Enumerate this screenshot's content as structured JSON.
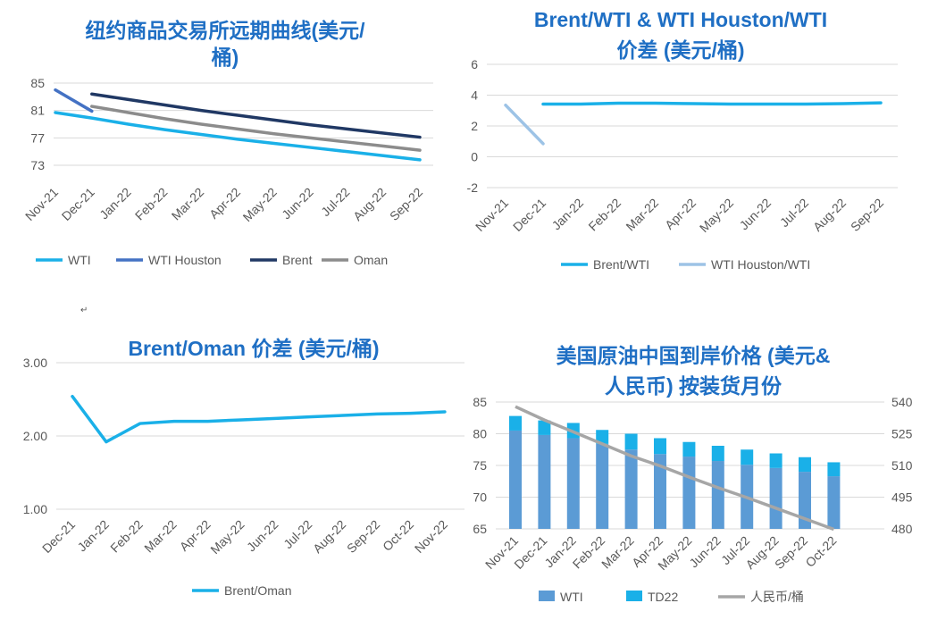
{
  "charts": [
    {
      "title_lines": [
        "纽约商品交易所远期曲线(美元/",
        "桶)"
      ],
      "ylim": [
        70,
        88
      ],
      "yticks": [
        "73",
        "77",
        "81",
        "85"
      ],
      "categories": [
        "Nov-21",
        "Dec-21",
        "Jan-22",
        "Feb-22",
        "Mar-22",
        "Apr-22",
        "May-22",
        "Jun-22",
        "Jul-22",
        "Aug-22",
        "Sep-22"
      ],
      "legend": [
        "WTI",
        "WTI Houston",
        "Brent",
        "Oman"
      ]
    },
    {
      "title_lines": [
        "Brent/WTI & WTI Houston/WTI",
        "价差 (美元/桶)"
      ],
      "ylim": [
        -2,
        6
      ],
      "yticks": [
        "-2",
        "0",
        "2",
        "4",
        "6"
      ],
      "categories": [
        "Nov-21",
        "Dec-21",
        "Jan-22",
        "Feb-22",
        "Mar-22",
        "Apr-22",
        "May-22",
        "Jun-22",
        "Jul-22",
        "Aug-22",
        "Sep-22"
      ],
      "legend": [
        "Brent/WTI",
        "WTI Houston/WTI"
      ]
    },
    {
      "title_lines": [
        "Brent/Oman 价差 (美元/桶)"
      ],
      "ylim": [
        1.0,
        3.0
      ],
      "yticks": [
        "1.00",
        "2.00",
        "3.00"
      ],
      "categories": [
        "Dec-21",
        "Jan-22",
        "Feb-22",
        "Mar-22",
        "Apr-22",
        "May-22",
        "Jun-22",
        "Jul-22",
        "Aug-22",
        "Sep-22",
        "Oct-22",
        "Nov-22"
      ],
      "legend": [
        "Brent/Oman"
      ]
    },
    {
      "title_lines": [
        "美国原油中国到岸价格 (美元&",
        "人民币) 按装货月份"
      ],
      "ylim": [
        65,
        85
      ],
      "yticks": [
        "65",
        "70",
        "75",
        "80",
        "85"
      ],
      "y2lim": [
        480,
        540
      ],
      "y2ticks": [
        "480",
        "495",
        "510",
        "525",
        "540"
      ],
      "categories": [
        "Nov-21",
        "Dec-21",
        "Jan-22",
        "Feb-22",
        "Mar-22",
        "Apr-22",
        "May-22",
        "Jun-22",
        "Jul-22",
        "Aug-22",
        "Sep-22",
        "Oct-22"
      ],
      "legend": [
        "WTI",
        "TD22",
        "人民币/桶"
      ]
    }
  ],
  "chart_data": [
    {
      "type": "line",
      "title": "纽约商品交易所远期曲线(美元/桶)",
      "categories": [
        "Nov-21",
        "Dec-21",
        "Jan-22",
        "Feb-22",
        "Mar-22",
        "Apr-22",
        "May-22",
        "Jun-22",
        "Jul-22",
        "Aug-22",
        "Sep-22"
      ],
      "ylim": [
        70,
        88
      ],
      "series": [
        {
          "name": "WTI",
          "color": "#1ab0e8",
          "values": [
            80.7,
            79.9,
            79.0,
            78.2,
            77.5,
            76.8,
            76.2,
            75.6,
            75.0,
            74.4,
            73.8
          ]
        },
        {
          "name": "WTI Houston",
          "color": "#4472c4",
          "values": [
            84.0,
            80.9,
            null,
            null,
            null,
            null,
            null,
            null,
            null,
            null,
            null
          ]
        },
        {
          "name": "Brent",
          "color": "#203864",
          "values": [
            null,
            83.4,
            82.6,
            81.8,
            81.0,
            80.3,
            79.6,
            78.9,
            78.3,
            77.7,
            77.1
          ]
        },
        {
          "name": "Oman",
          "color": "#8c8c8c",
          "values": [
            null,
            81.6,
            80.7,
            79.8,
            79.0,
            78.3,
            77.6,
            77.0,
            76.4,
            75.8,
            75.2
          ]
        }
      ]
    },
    {
      "type": "line",
      "title": "Brent/WTI & WTI Houston/WTI 价差 (美元/桶)",
      "categories": [
        "Nov-21",
        "Dec-21",
        "Jan-22",
        "Feb-22",
        "Mar-22",
        "Apr-22",
        "May-22",
        "Jun-22",
        "Jul-22",
        "Aug-22",
        "Sep-22"
      ],
      "ylim": [
        -2,
        6
      ],
      "series": [
        {
          "name": "Brent/WTI",
          "color": "#1ab0e8",
          "values": [
            null,
            3.42,
            3.42,
            3.48,
            3.48,
            3.45,
            3.42,
            3.42,
            3.42,
            3.45,
            3.5
          ]
        },
        {
          "name": "WTI Houston/WTI",
          "color": "#9dc3e6",
          "values": [
            3.35,
            0.85,
            null,
            null,
            null,
            null,
            null,
            null,
            null,
            null,
            null
          ]
        }
      ]
    },
    {
      "type": "line",
      "title": "Brent/Oman 价差 (美元/桶)",
      "categories": [
        "Dec-21",
        "Jan-22",
        "Feb-22",
        "Mar-22",
        "Apr-22",
        "May-22",
        "Jun-22",
        "Jul-22",
        "Aug-22",
        "Sep-22",
        "Oct-22",
        "Nov-22"
      ],
      "ylim": [
        1.0,
        3.0
      ],
      "series": [
        {
          "name": "Brent/Oman",
          "color": "#1ab0e8",
          "values": [
            2.54,
            1.92,
            2.17,
            2.2,
            2.2,
            2.22,
            2.24,
            2.26,
            2.28,
            2.3,
            2.31,
            2.33
          ]
        }
      ]
    },
    {
      "type": "bar",
      "title": "美国原油中国到岸价格 (美元&人民币) 按装货月份",
      "categories": [
        "Nov-21",
        "Dec-21",
        "Jan-22",
        "Feb-22",
        "Mar-22",
        "Apr-22",
        "May-22",
        "Jun-22",
        "Jul-22",
        "Aug-22",
        "Sep-22",
        "Oct-22"
      ],
      "ylim": [
        65,
        85
      ],
      "y2lim": [
        480,
        540
      ],
      "series": [
        {
          "name": "WTI",
          "kind": "bar-stack",
          "axis": "left",
          "color": "#5b9bd5",
          "values": [
            80.5,
            79.8,
            79.3,
            78.4,
            77.5,
            76.8,
            76.4,
            75.7,
            75.1,
            74.6,
            74.0,
            73.3
          ]
        },
        {
          "name": "TD22",
          "kind": "bar-stack",
          "axis": "left",
          "color": "#1ab0e8",
          "values": [
            2.3,
            2.3,
            2.4,
            2.2,
            2.5,
            2.5,
            2.3,
            2.4,
            2.4,
            2.3,
            2.3,
            2.2
          ]
        },
        {
          "name": "人民币/桶",
          "kind": "line",
          "axis": "right",
          "color": "#a6a6a6",
          "values": [
            537.8,
            531.5,
            525.9,
            520.2,
            514.5,
            509.8,
            504.5,
            499.5,
            494.8,
            489.8,
            484.8,
            479.8
          ]
        }
      ]
    }
  ],
  "stray_mark": "↵"
}
